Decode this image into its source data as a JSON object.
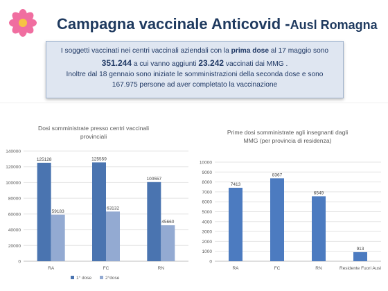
{
  "header": {
    "title_main": "Campagna vaccinale Anticovid -",
    "title_suffix": "Ausl Romagna"
  },
  "info": {
    "l1_pre": "I soggetti vaccinati nei centri vaccinali aziendali con la ",
    "l1_bold": "prima dose",
    "l1_post": " al 17 maggio sono",
    "l2_n1": "351.244",
    "l2_mid": " a cui vanno aggiunti ",
    "l2_n2": "23.242",
    "l2_post": " vaccinati dai MMG .",
    "l3": "Inoltre dal 18 gennaio sono iniziate le somministrazioni della  seconda dose  e sono",
    "l4": "167.975 persone ad aver completato la vaccinazione"
  },
  "colors": {
    "dose1": "#4a74b0",
    "dose2": "#93aad2",
    "teachers": "#4c7bc0",
    "title": "#1f3a5f",
    "box_bg": "#dfe6f1"
  },
  "chart_data": [
    {
      "type": "bar",
      "title_lines": [
        "Dosi somministrate presso centri vaccinali",
        "provinciali"
      ],
      "categories": [
        "RA",
        "FC",
        "RN"
      ],
      "series": [
        {
          "name": "1° dose",
          "values": [
            125128,
            125559,
            100557
          ],
          "labels": [
            "125128",
            "125559",
            "100557"
          ]
        },
        {
          "name": "2°dose",
          "values": [
            59183,
            63132,
            45660
          ],
          "labels": [
            "59183",
            "63132",
            "45660"
          ]
        }
      ],
      "ylim": [
        0,
        140000
      ],
      "yticks": [
        "0",
        "20000",
        "40000",
        "60000",
        "80000",
        "100000",
        "120000",
        "140000"
      ],
      "ytick_values": [
        0,
        20000,
        40000,
        60000,
        80000,
        100000,
        120000,
        140000
      ],
      "legend": "bottom",
      "grid": true
    },
    {
      "type": "bar",
      "title_lines": [
        "Prime dosi somministrate agli insegnanti dagli",
        "MMG (per provincia di residenza)"
      ],
      "categories": [
        "RA",
        "FC",
        "RN",
        "Residente Fuori Ausl"
      ],
      "series": [
        {
          "values": [
            7413,
            8367,
            6549,
            913
          ],
          "labels": [
            "7413",
            "8367",
            "6549",
            "913"
          ]
        }
      ],
      "ylim": [
        0,
        10000
      ],
      "yticks": [
        "0",
        "1000",
        "2000",
        "3000",
        "4000",
        "5000",
        "6000",
        "7000",
        "8000",
        "9000",
        "10000"
      ],
      "ytick_values": [
        0,
        1000,
        2000,
        3000,
        4000,
        5000,
        6000,
        7000,
        8000,
        9000,
        10000
      ],
      "legend": "none",
      "grid": true
    }
  ]
}
